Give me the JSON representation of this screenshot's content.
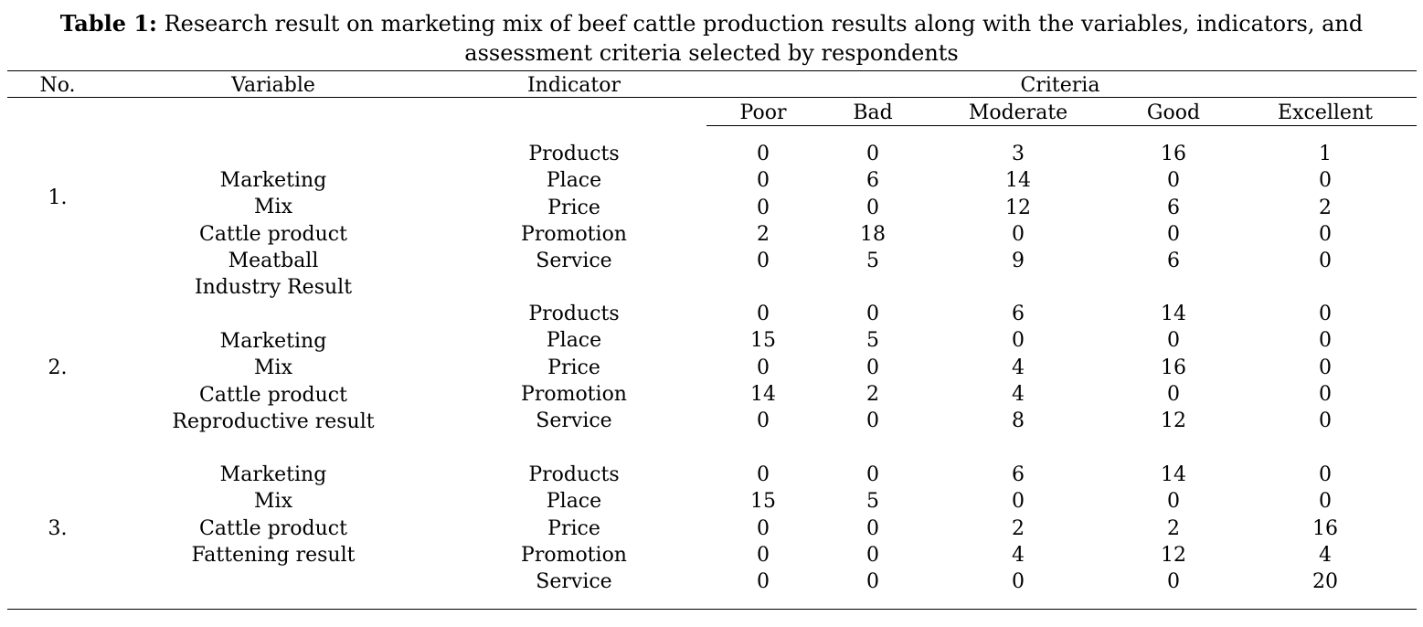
{
  "caption": {
    "label": "Table 1:",
    "text": "Research result on marketing mix of beef cattle production results along with the variables, indicators, and assessment criteria selected by respondents"
  },
  "headers": {
    "no": "No.",
    "variable": "Variable",
    "indicator": "Indicator",
    "criteria": "Criteria",
    "criteria_cols": [
      "Poor",
      "Bad",
      "Moderate",
      "Good",
      "Excellent"
    ]
  },
  "groups": [
    {
      "no": "1.",
      "variable_lines": [
        "Marketing",
        "Mix",
        "Cattle product",
        "Meatball",
        "Industry Result"
      ],
      "rows": [
        {
          "indicator": "Products",
          "values": [
            "0",
            "0",
            "3",
            "16",
            "1"
          ]
        },
        {
          "indicator": "Place",
          "values": [
            "0",
            "6",
            "14",
            "0",
            "0"
          ]
        },
        {
          "indicator": "Price",
          "values": [
            "0",
            "0",
            "12",
            "6",
            "2"
          ]
        },
        {
          "indicator": "Promotion",
          "values": [
            "2",
            "18",
            "0",
            "0",
            "0"
          ]
        },
        {
          "indicator": "Service",
          "values": [
            "0",
            "5",
            "9",
            "6",
            "0"
          ]
        }
      ]
    },
    {
      "no": "2.",
      "variable_lines": [
        "Marketing",
        "Mix",
        "Cattle product",
        "Reproductive result"
      ],
      "rows": [
        {
          "indicator": "Products",
          "values": [
            "0",
            "0",
            "6",
            "14",
            "0"
          ]
        },
        {
          "indicator": "Place",
          "values": [
            "15",
            "5",
            "0",
            "0",
            "0"
          ]
        },
        {
          "indicator": "Price",
          "values": [
            "0",
            "0",
            "4",
            "16",
            "0"
          ]
        },
        {
          "indicator": "Promotion",
          "values": [
            "14",
            "2",
            "4",
            "0",
            "0"
          ]
        },
        {
          "indicator": "Service",
          "values": [
            "0",
            "0",
            "8",
            "12",
            "0"
          ]
        }
      ]
    },
    {
      "no": "3.",
      "variable_lines": [
        "Marketing",
        "Mix",
        "Cattle product",
        "Fattening result"
      ],
      "rows": [
        {
          "indicator": "Products",
          "values": [
            "0",
            "0",
            "6",
            "14",
            "0"
          ]
        },
        {
          "indicator": "Place",
          "values": [
            "15",
            "5",
            "0",
            "0",
            "0"
          ]
        },
        {
          "indicator": "Price",
          "values": [
            "0",
            "0",
            "2",
            "2",
            "16"
          ]
        },
        {
          "indicator": "Promotion",
          "values": [
            "0",
            "0",
            "4",
            "12",
            "4"
          ]
        },
        {
          "indicator": "Service",
          "values": [
            "0",
            "0",
            "0",
            "0",
            "20"
          ]
        }
      ]
    }
  ]
}
